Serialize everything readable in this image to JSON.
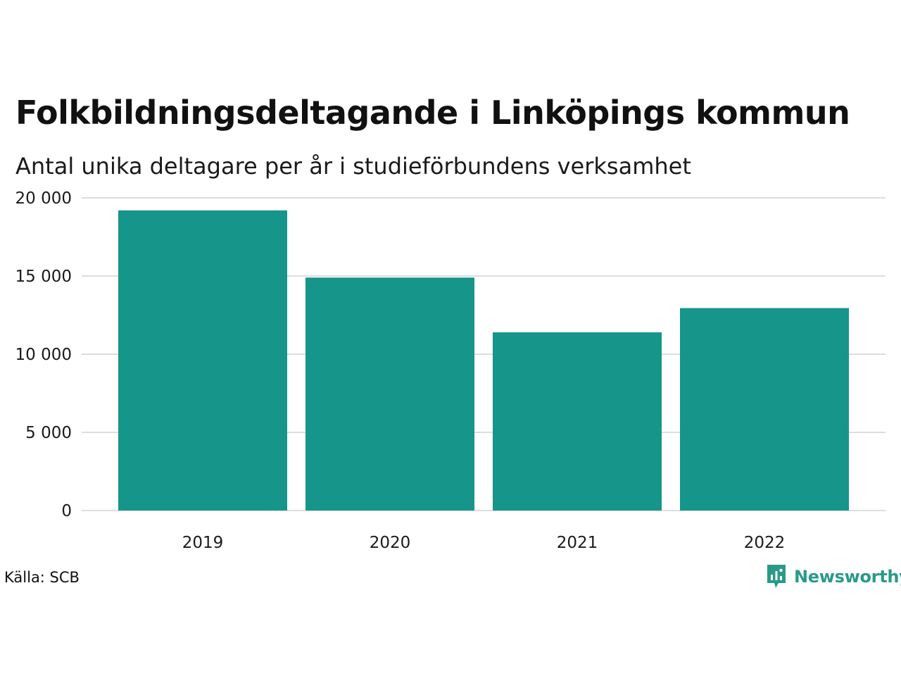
{
  "header": {
    "title": "Folkbildningsdeltagande i Linköpings kommun",
    "subtitle": "Antal unika deltagare per år i studieförbundens verksamhet"
  },
  "footer": {
    "source": "Källa: SCB",
    "brand": "Newsworthy",
    "brand_color": "#2a9a88"
  },
  "chart_data": {
    "type": "bar",
    "title": "Folkbildningsdeltagande i Linköpings kommun",
    "subtitle": "Antal unika deltagare per år i studieförbundens verksamhet",
    "categories": [
      "2019",
      "2020",
      "2021",
      "2022"
    ],
    "values": [
      19200,
      14900,
      11400,
      12950
    ],
    "ylim": [
      0,
      20000
    ],
    "yticks": [
      0,
      5000,
      10000,
      15000,
      20000
    ],
    "ytick_labels": [
      "0",
      "5 000",
      "10 000",
      "15 000",
      "20 000"
    ],
    "xlabel": "",
    "ylabel": "",
    "grid": true,
    "legend": "none",
    "bar_color": "#16958a",
    "grid_color": "#dddddd"
  }
}
